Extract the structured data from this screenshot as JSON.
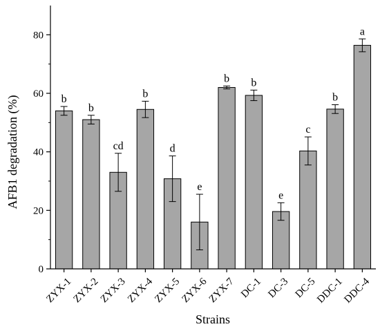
{
  "chart_data": {
    "type": "bar",
    "title": "",
    "xlabel": "Strains",
    "ylabel": "AFB1 degradation (%)",
    "ylim": [
      0,
      90
    ],
    "yticks": [
      0,
      20,
      40,
      60,
      80
    ],
    "grid": false,
    "categories": [
      "ZYX-1",
      "ZYX-2",
      "ZYX-3",
      "ZYX-4",
      "ZYX-5",
      "ZYX-6",
      "ZYX-7",
      "DC-1",
      "DC-3",
      "DC-5",
      "DDC-1",
      "DDC-4"
    ],
    "values": [
      54.0,
      51.0,
      33.0,
      54.5,
      30.8,
      16.0,
      62.0,
      59.3,
      19.6,
      40.3,
      54.6,
      76.4
    ],
    "errors": [
      1.5,
      1.5,
      6.5,
      2.8,
      7.8,
      9.5,
      0.5,
      1.8,
      3.0,
      4.8,
      1.5,
      2.2
    ],
    "significance": [
      "b",
      "b",
      "cd",
      "b",
      "d",
      "e",
      "b",
      "b",
      "e",
      "c",
      "b",
      "a"
    ],
    "bar_color": "#a6a6a6"
  }
}
